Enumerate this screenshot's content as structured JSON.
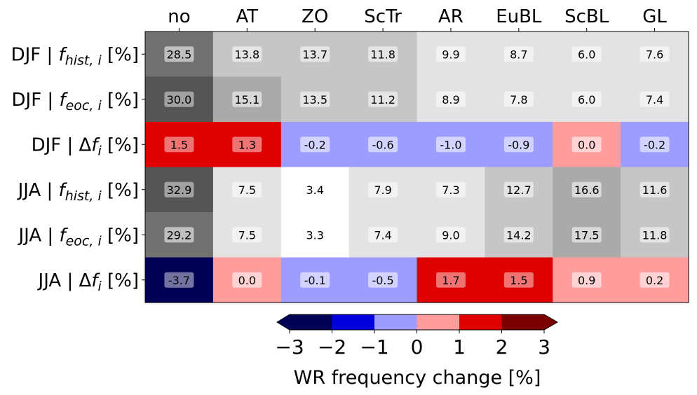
{
  "chart_data": {
    "type": "heatmap",
    "columns": [
      "no",
      "AT",
      "ZO",
      "ScTr",
      "AR",
      "EuBL",
      "ScBL",
      "GL"
    ],
    "rows": [
      {
        "season": "DJF",
        "label": "DJF | f_hist,i [%]",
        "kind": "hist",
        "values": [
          28.5,
          13.8,
          13.7,
          11.8,
          9.9,
          8.7,
          6.0,
          7.6
        ],
        "labels": [
          "28.5",
          "13.8",
          "13.7",
          "11.8",
          "9.9",
          "8.7",
          "6.0",
          "7.6"
        ]
      },
      {
        "season": "DJF",
        "label": "DJF | f_eoc,i [%]",
        "kind": "eoc",
        "values": [
          30.0,
          15.1,
          13.5,
          11.2,
          8.9,
          7.8,
          6.0,
          7.4
        ],
        "labels": [
          "30.0",
          "15.1",
          "13.5",
          "11.2",
          "8.9",
          "7.8",
          "6.0",
          "7.4"
        ]
      },
      {
        "season": "DJF",
        "label": "DJF | Δf_i [%]",
        "kind": "delta",
        "values": [
          1.5,
          1.3,
          -0.2,
          -0.6,
          -1.0,
          -0.9,
          0.0,
          -0.2
        ],
        "labels": [
          "1.5",
          "1.3",
          "-0.2",
          "-0.6",
          "-1.0",
          "-0.9",
          "0.0",
          "-0.2"
        ]
      },
      {
        "season": "JJA",
        "label": "JJA | f_hist,i [%]",
        "kind": "hist",
        "values": [
          32.9,
          7.5,
          3.4,
          7.9,
          7.3,
          12.7,
          16.6,
          11.6
        ],
        "labels": [
          "32.9",
          "7.5",
          "3.4",
          "7.9",
          "7.3",
          "12.7",
          "16.6",
          "11.6"
        ]
      },
      {
        "season": "JJA",
        "label": "JJA | f_eoc,i [%]",
        "kind": "eoc",
        "values": [
          29.2,
          7.5,
          3.3,
          7.4,
          9.0,
          14.2,
          17.5,
          11.8
        ],
        "labels": [
          "29.2",
          "7.5",
          "3.3",
          "7.4",
          "9.0",
          "14.2",
          "17.5",
          "11.8"
        ]
      },
      {
        "season": "JJA",
        "label": "JJA | Δf_i [%]",
        "kind": "delta",
        "values": [
          -3.7,
          0.0,
          -0.1,
          -0.5,
          1.7,
          1.5,
          0.9,
          0.2
        ],
        "labels": [
          "-3.7",
          "0.0",
          "-0.1",
          "-0.5",
          "1.7",
          "1.5",
          "0.9",
          "0.2"
        ]
      }
    ],
    "row_label_parts": [
      {
        "prefix": "DJF | ",
        "symbol": "f",
        "sub": "hist, i",
        "suffix": " [%]"
      },
      {
        "prefix": "DJF | ",
        "symbol": "f",
        "sub": "eoc, i",
        "suffix": " [%]"
      },
      {
        "prefix": "DJF | Δ",
        "symbol": "f",
        "sub": "i",
        "suffix": " [%]"
      },
      {
        "prefix": "JJA | ",
        "symbol": "f",
        "sub": "hist, i",
        "suffix": " [%]"
      },
      {
        "prefix": "JJA | ",
        "symbol": "f",
        "sub": "eoc, i",
        "suffix": " [%]"
      },
      {
        "prefix": "JJA | Δ",
        "symbol": "f",
        "sub": "i",
        "suffix": " [%]"
      }
    ],
    "frequency_colormap": {
      "bounds": [
        0,
        5,
        10,
        15,
        20,
        25,
        30,
        35
      ],
      "colors": [
        "#ffffff",
        "#e3e3e3",
        "#c6c6c6",
        "#aaaaaa",
        "#8e8e8e",
        "#717171",
        "#555555"
      ]
    },
    "change_colormap": {
      "bounds": [
        -3,
        -2,
        -1,
        0,
        1,
        2,
        3
      ],
      "colors": [
        "#1c1cd2",
        "#0000dd",
        "#9d9dff",
        "#ff9d9d",
        "#e10000",
        "#7b0000"
      ],
      "under_color": "#000055",
      "over_color": "#7b0000"
    },
    "colorbar": {
      "ticks": [
        "−3",
        "−2",
        "−1",
        "0",
        "1",
        "2",
        "3"
      ],
      "label": "WR frequency change [%]",
      "extend": "both"
    }
  }
}
